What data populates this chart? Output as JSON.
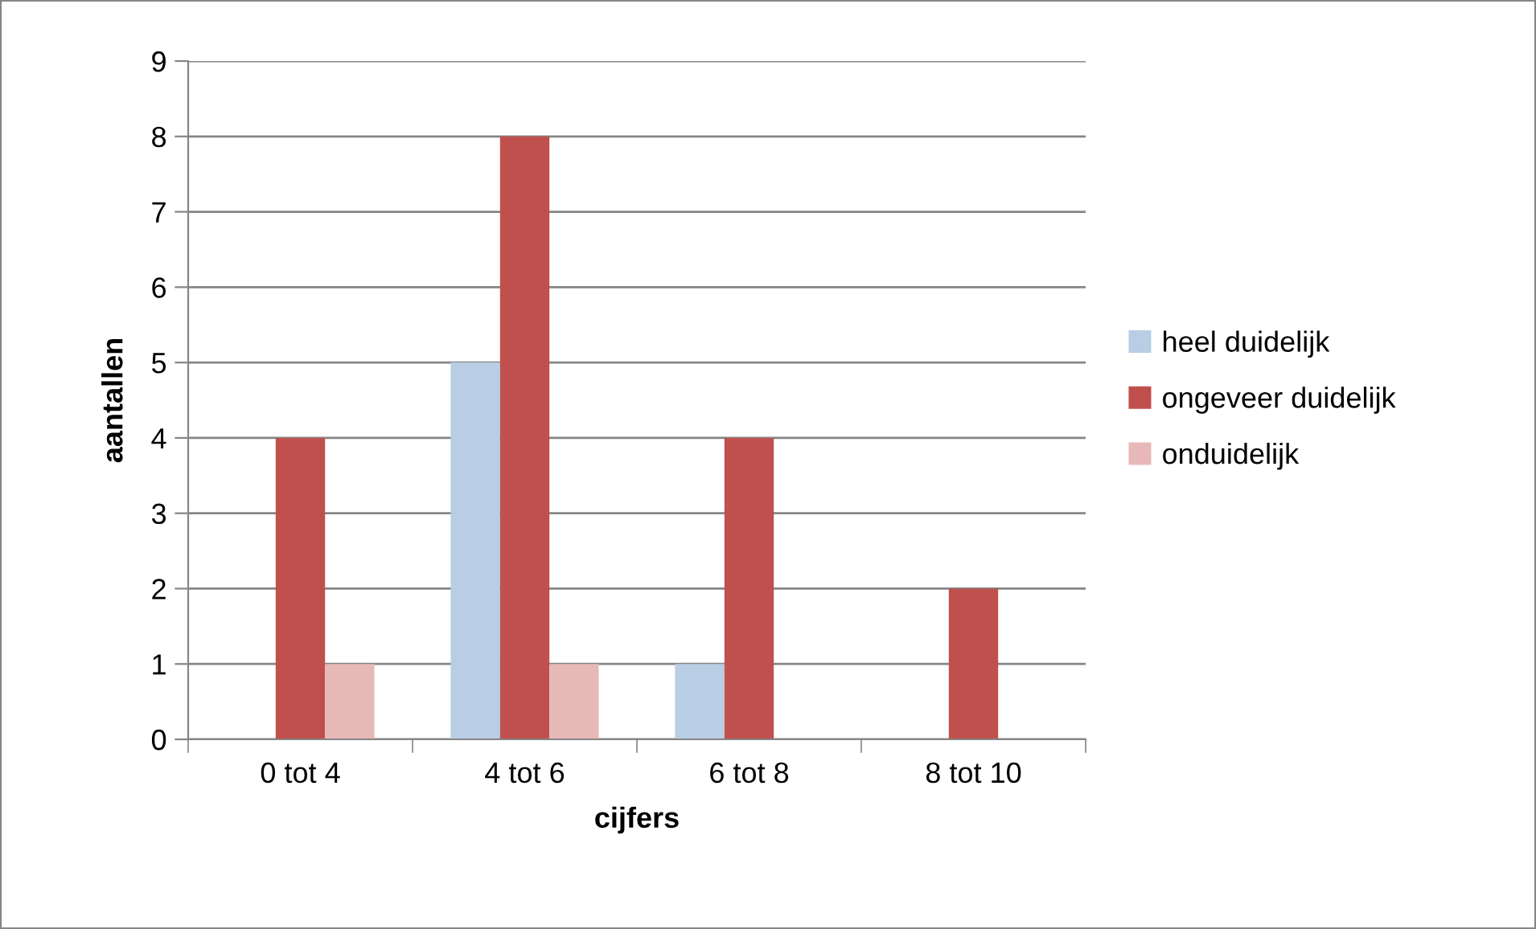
{
  "chart_data": {
    "type": "bar",
    "xlabel": "cijfers",
    "ylabel": "aantallen",
    "categories": [
      "0 tot 4",
      "4 tot 6",
      "6 tot 8",
      "8 tot 10"
    ],
    "series": [
      {
        "name": "heel duidelijk",
        "color": "#b9cde5",
        "values": [
          0,
          5,
          1,
          0
        ]
      },
      {
        "name": "ongeveer duidelijk",
        "color": "#c0504d",
        "values": [
          4,
          8,
          4,
          2
        ]
      },
      {
        "name": "onduidelijk",
        "color": "#e6b9b8",
        "values": [
          1,
          1,
          0,
          0
        ]
      }
    ],
    "ylim": [
      0,
      9
    ],
    "yticks": [
      0,
      1,
      2,
      3,
      4,
      5,
      6,
      7,
      8,
      9
    ],
    "grid": "y",
    "legend": "right"
  }
}
